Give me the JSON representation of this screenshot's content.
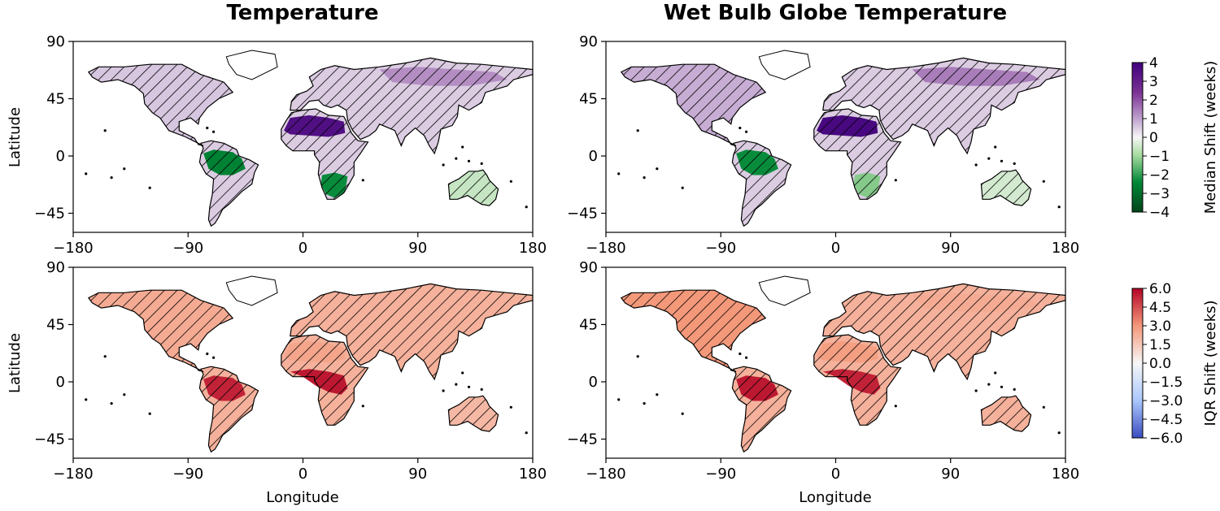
{
  "figure": {
    "col_titles": [
      "Temperature",
      "Wet Bulb Globe Temperature"
    ],
    "ylabel": "Latitude",
    "xlabel": "Longitude"
  },
  "colorbars": [
    {
      "label": "Median Shift (weeks)",
      "ticks": [
        "4",
        "3",
        "2",
        "1",
        "0",
        "−1",
        "−2",
        "−3",
        "−4"
      ],
      "colors": [
        "#3f007d",
        "#7b3294",
        "#c2a5cf",
        "#f7f7f7",
        "#a6dba0",
        "#008837",
        "#00441b"
      ]
    },
    {
      "label": "IQR Shift (weeks)",
      "ticks": [
        "6.0",
        "4.5",
        "3.0",
        "1.5",
        "0.0",
        "−1.5",
        "−3.0",
        "−4.5",
        "−6.0"
      ],
      "colors": [
        "#b40426",
        "#f4987a",
        "#f7f7f7",
        "#aac7fd",
        "#3b4cc0"
      ]
    }
  ],
  "chart_data": [
    {
      "type": "heatmap",
      "title": "Temperature",
      "ylabel": "Latitude",
      "xlim": [
        -180,
        180
      ],
      "ylim": [
        -60,
        90
      ],
      "xticks": [
        "−180",
        "−90",
        "0",
        "90",
        "180"
      ],
      "yticks": [
        "90",
        "45",
        "0",
        "−45"
      ],
      "colorbar": "Median Shift (weeks)",
      "range": [
        -4,
        4
      ],
      "regions": [
        {
          "name": "North America",
          "value": 0.8
        },
        {
          "name": "Amazon",
          "value": -2.8
        },
        {
          "name": "Sahara",
          "value": 3.6
        },
        {
          "name": "Southern Africa",
          "value": -2.6
        },
        {
          "name": "Siberia",
          "value": 1.6
        },
        {
          "name": "Australia",
          "value": -0.8
        }
      ]
    },
    {
      "type": "heatmap",
      "title": "Wet Bulb Globe Temperature",
      "xlim": [
        -180,
        180
      ],
      "ylim": [
        -60,
        90
      ],
      "xticks": [
        "−180",
        "−90",
        "0",
        "90",
        "180"
      ],
      "yticks": [
        "90",
        "45",
        "0",
        "−45"
      ],
      "colorbar": "Median Shift (weeks)",
      "range": [
        -4,
        4
      ],
      "regions": [
        {
          "name": "North America",
          "value": 1.2
        },
        {
          "name": "Amazon",
          "value": -2.6
        },
        {
          "name": "Sahara",
          "value": 3.8
        },
        {
          "name": "Southern Africa",
          "value": -1.6
        },
        {
          "name": "Siberia",
          "value": 1.8
        },
        {
          "name": "Australia",
          "value": -0.6
        }
      ]
    },
    {
      "type": "heatmap",
      "xlabel": "Longitude",
      "ylabel": "Latitude",
      "xlim": [
        -180,
        180
      ],
      "ylim": [
        -60,
        90
      ],
      "xticks": [
        "−180",
        "−90",
        "0",
        "90",
        "180"
      ],
      "yticks": [
        "90",
        "45",
        "0",
        "−45"
      ],
      "colorbar": "IQR Shift (weeks)",
      "range": [
        -6,
        6
      ],
      "regions": [
        {
          "name": "North America",
          "value": 2.4
        },
        {
          "name": "Amazon",
          "value": 5.4
        },
        {
          "name": "Sahara",
          "value": 2.6
        },
        {
          "name": "Central Africa",
          "value": 5.6
        },
        {
          "name": "Siberia",
          "value": 2.2
        },
        {
          "name": "Australia",
          "value": 2.0
        }
      ]
    },
    {
      "type": "heatmap",
      "xlabel": "Longitude",
      "xlim": [
        -180,
        180
      ],
      "ylim": [
        -60,
        90
      ],
      "xticks": [
        "−180",
        "−90",
        "0",
        "90",
        "180"
      ],
      "yticks": [
        "90",
        "45",
        "0",
        "−45"
      ],
      "colorbar": "IQR Shift (weeks)",
      "range": [
        -6,
        6
      ],
      "regions": [
        {
          "name": "North America",
          "value": 3.0
        },
        {
          "name": "Amazon",
          "value": 5.6
        },
        {
          "name": "Sahara",
          "value": 2.8
        },
        {
          "name": "Central Africa",
          "value": 5.4
        },
        {
          "name": "Siberia",
          "value": 2.4
        },
        {
          "name": "Australia",
          "value": 2.2
        }
      ]
    }
  ]
}
